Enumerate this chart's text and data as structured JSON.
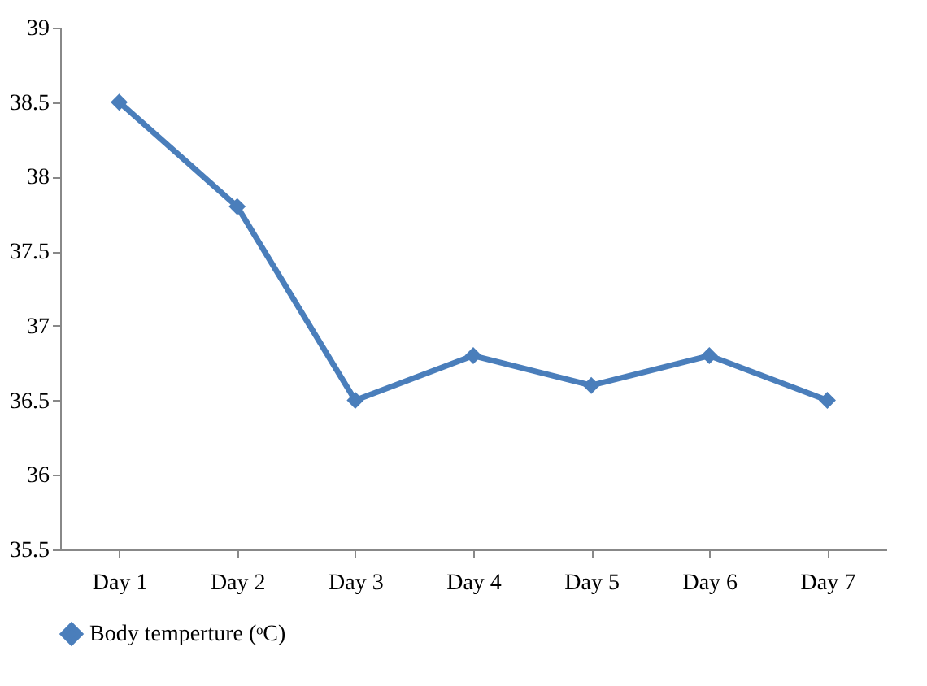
{
  "chart_data": {
    "type": "line",
    "categories": [
      "Day 1",
      "Day 2",
      "Day 3",
      "Day 4",
      "Day 5",
      "Day 6",
      "Day 7"
    ],
    "series": [
      {
        "name": "Body temperture (ᵒC)",
        "color": "#4a7ebb",
        "values": [
          38.5,
          37.8,
          36.5,
          36.8,
          36.6,
          36.8,
          36.5
        ]
      }
    ],
    "ylim": [
      35.5,
      39
    ],
    "yticks": [
      35.5,
      36,
      36.5,
      37,
      37.5,
      38,
      38.5,
      39
    ],
    "grid": false,
    "legend": "bottom",
    "marker": "diamond",
    "line_style": "solid"
  }
}
